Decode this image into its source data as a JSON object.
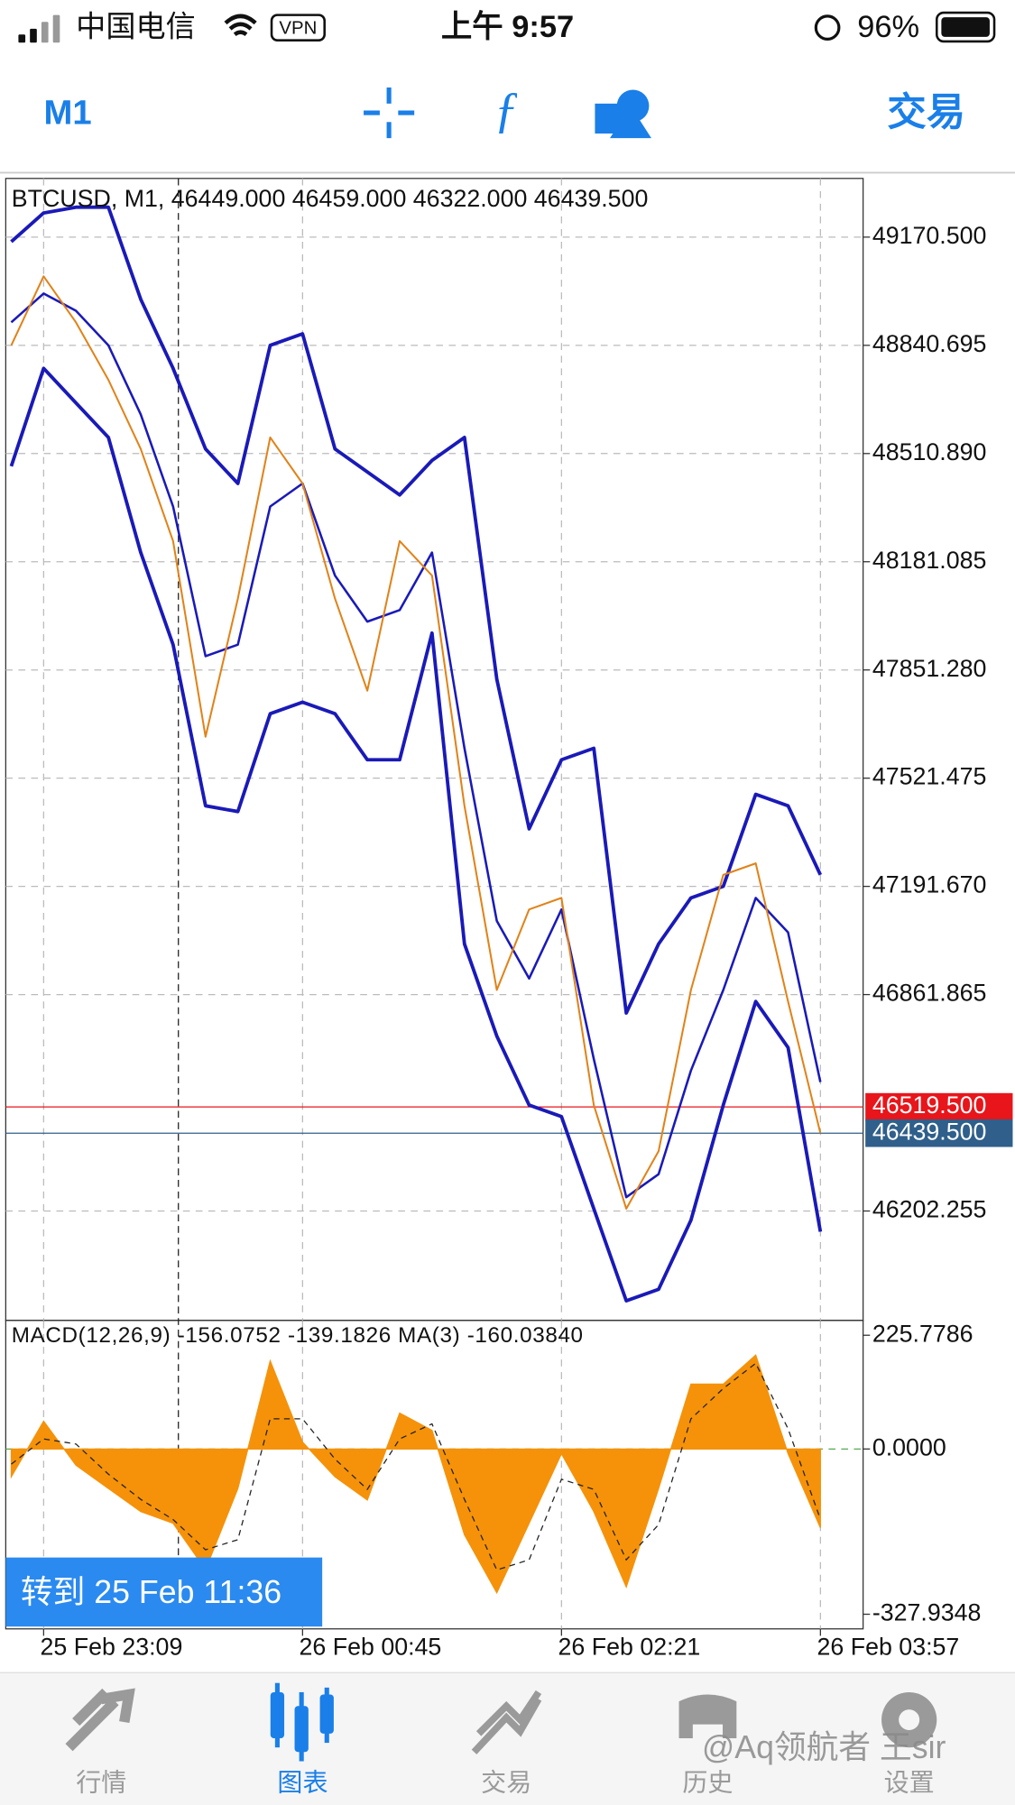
{
  "status_bar": {
    "carrier": "中国电信",
    "vpn": "VPN",
    "time": "上午 9:57",
    "battery": "96%"
  },
  "toolbar": {
    "timeframe": "M1",
    "trade": "交易"
  },
  "chart_data": [
    {
      "type": "line",
      "title": "BTCUSD, M1, 46449.000 46459.000 46322.000 46439.500",
      "ylim": [
        45868.9,
        49349.4
      ],
      "yticks": [
        {
          "value": 49170.5,
          "label": "49170.500"
        },
        {
          "value": 48840.695,
          "label": "48840.695"
        },
        {
          "value": 48510.89,
          "label": "48510.890"
        },
        {
          "value": 48181.085,
          "label": "48181.085"
        },
        {
          "value": 47851.28,
          "label": "47851.280"
        },
        {
          "value": 47521.475,
          "label": "47521.475"
        },
        {
          "value": 47191.67,
          "label": "47191.670"
        },
        {
          "value": 46861.865,
          "label": "46861.865"
        },
        {
          "value": 46202.255,
          "label": "46202.255"
        }
      ],
      "grid": true,
      "price_lines": [
        {
          "value": 46519.5,
          "label": "46519.500",
          "color": "#e8151b"
        },
        {
          "value": 46439.5,
          "label": "46439.500",
          "color": "#2f5f8a"
        }
      ],
      "series": [
        {
          "color": "#1a1ab8",
          "width": 3,
          "values": [
            49156.5,
            49244.2,
            49261.7,
            49261.7,
            48981.0,
            48770.5,
            48524.9,
            48419.7,
            48840.7,
            48875.8,
            48524.9,
            48454.7,
            48384.6,
            48489.8,
            48560.0,
            47823.2,
            47367.1,
            47577.6,
            47612.7,
            46805.7,
            47016.2,
            47156.6,
            47191.7,
            47472.3,
            47437.3,
            47226.7
          ]
        },
        {
          "color": "#1a1ab8",
          "width": 2,
          "values": [
            48910.9,
            48998.6,
            48946.0,
            48840.7,
            48630.2,
            48349.5,
            47893.4,
            47928.5,
            48349.5,
            48419.7,
            48139.0,
            47998.6,
            48033.7,
            48209.2,
            47612.7,
            47086.4,
            46911.0,
            47121.5,
            46665.4,
            46244.3,
            46314.5,
            46630.3,
            46875.9,
            47156.6,
            47051.3,
            46595.2
          ]
        },
        {
          "color": "#1a1ab8",
          "width": 3,
          "values": [
            48472.3,
            48770.5,
            48665.3,
            48560.0,
            48209.2,
            47928.5,
            47437.3,
            47419.8,
            47718.0,
            47753.0,
            47718.0,
            47577.6,
            47577.6,
            47963.5,
            47016.2,
            46735.5,
            46525.0,
            46489.9,
            46209.2,
            45928.5,
            45963.6,
            46174.2,
            46525.0,
            46840.8,
            46700.4,
            46139.1
          ]
        },
        {
          "color": "#e0831a",
          "width": 1.6,
          "values": [
            48840.7,
            49051.2,
            48910.9,
            48735.4,
            48524.9,
            48244.2,
            47647.8,
            48068.8,
            48560.0,
            48419.7,
            48068.8,
            47788.1,
            48244.2,
            48139.0,
            47437.3,
            46875.9,
            47121.5,
            47156.6,
            46525.0,
            46209.2,
            46384.7,
            46875.9,
            47226.7,
            47261.8,
            46840.8,
            46439.5
          ]
        }
      ]
    },
    {
      "type": "area",
      "title": "MACD(12,26,9) -156.0752 -139.1826 MA(3) -160.03840",
      "categories": [
        null,
        "25 Feb 23:09",
        null,
        null,
        null,
        null,
        null,
        null,
        null,
        "26 Feb 00:45",
        null,
        null,
        null,
        null,
        null,
        null,
        null,
        "26 Feb 02:21",
        null,
        null,
        null,
        null,
        null,
        null,
        null,
        "26 Feb 03:57"
      ],
      "ylim": [
        -357,
        253
      ],
      "yticks": [
        {
          "value": 225.7786,
          "label": "225.7786"
        },
        {
          "value": 0,
          "label": "0.0000"
        },
        {
          "value": -327.9348,
          "label": "-327.9348"
        }
      ],
      "zero_line_color": "#55aa55",
      "series": [
        {
          "color": "#f5920a",
          "fill": true,
          "values": [
            -55.2,
            55.2,
            -32.2,
            -78.2,
            -124.2,
            -147.2,
            -239.2,
            -78.2,
            174.8,
            13.8,
            -55.2,
            -101.2,
            71.3,
            36.8,
            -170.2,
            -285.2,
            -147.2,
            -9.2,
            -124.2,
            -273.7,
            -78.2,
            128.8,
            128.8,
            186.3,
            -9.2,
            -156.0752
          ]
        },
        {
          "color": "#222222",
          "dashed": true,
          "values": [
            -30,
            20,
            10,
            -50,
            -100,
            -140,
            -200,
            -180,
            60,
            60,
            -20,
            -80,
            20,
            50,
            -100,
            -240,
            -220,
            -60,
            -80,
            -220,
            -150,
            60,
            120,
            170,
            40,
            -139.1826
          ]
        }
      ]
    }
  ],
  "goto_button": "转到 25 Feb 11:36",
  "tab_bar": {
    "tabs": [
      "行情",
      "图表",
      "交易",
      "历史",
      "设置"
    ],
    "active": 1
  },
  "watermark": "@Aq领航者 王sir"
}
